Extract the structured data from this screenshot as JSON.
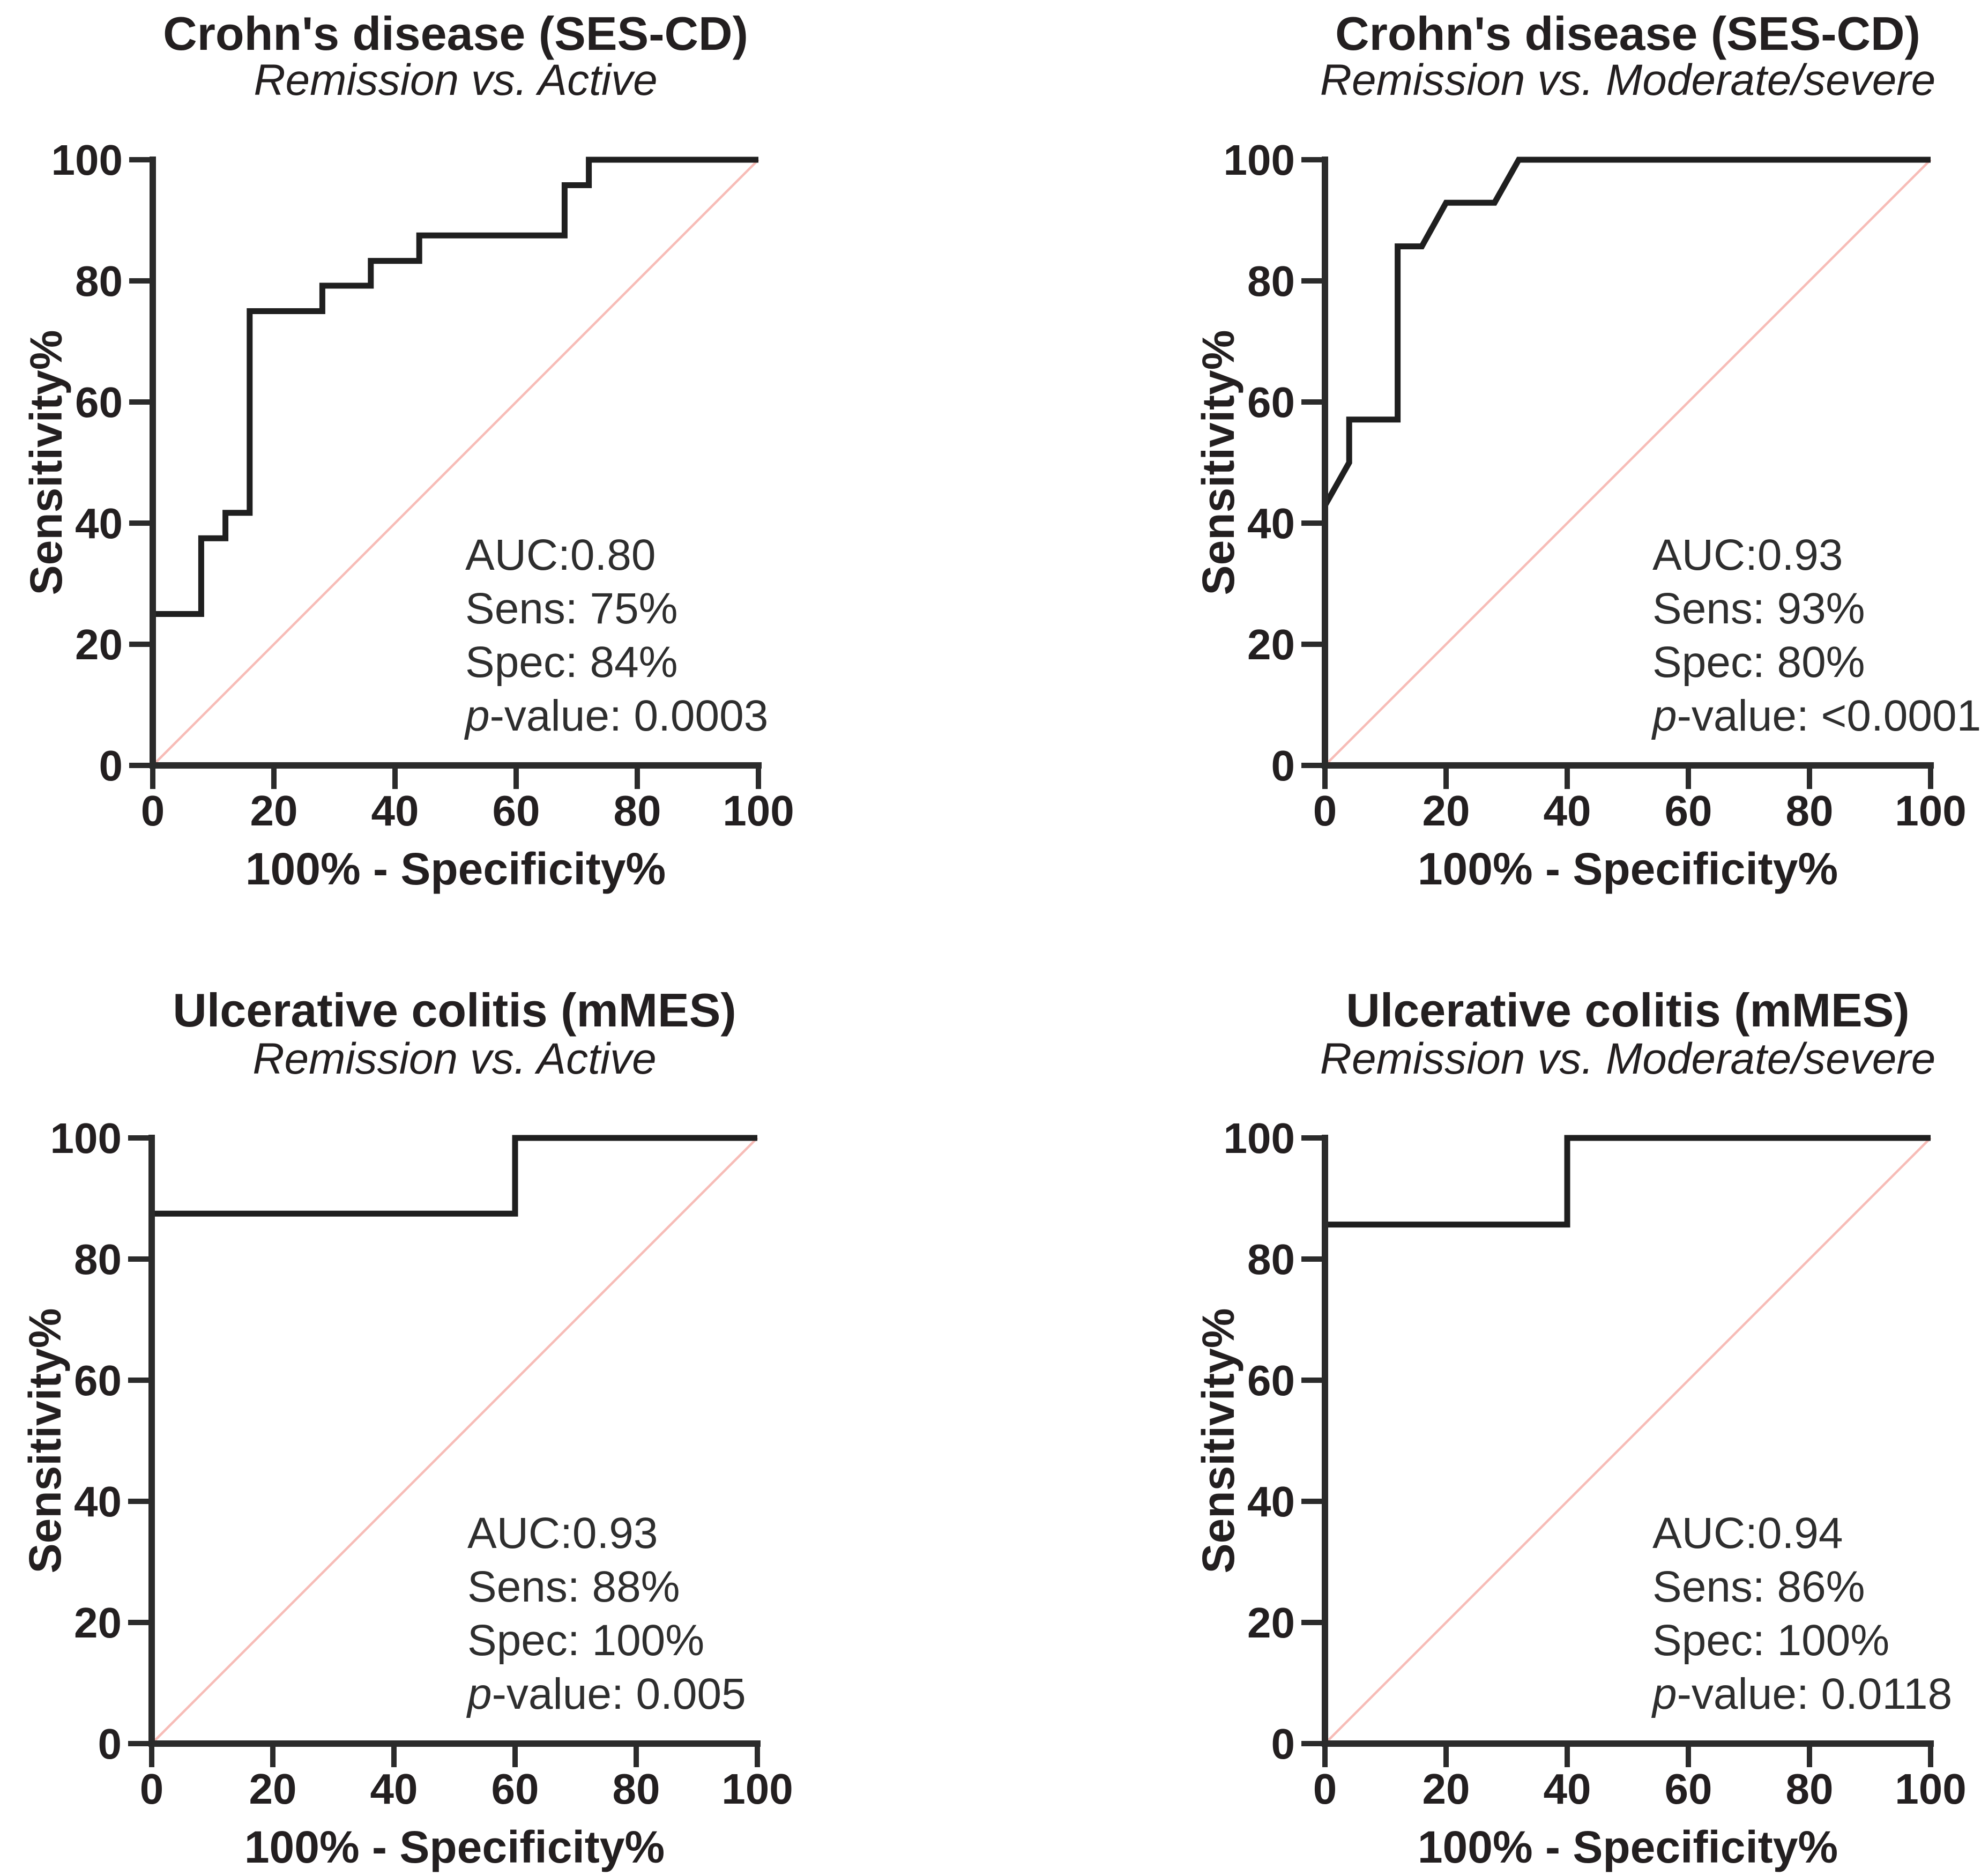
{
  "figure": {
    "background": "#ffffff",
    "text_color": "#231f20",
    "annotation_color": "#2e2e2e",
    "curve_color": "#1f1f1f",
    "axis_color": "#2b2b2b",
    "reference_color": "#f7bcb7"
  },
  "chart_data": [
    {
      "type": "line",
      "title": "Crohn's disease (SES-CD)",
      "subtitle": "Remission vs. Active",
      "xlabel": "100% - Specificity%",
      "ylabel": "Sensitivity%",
      "xlim": [
        0,
        100
      ],
      "ylim": [
        0,
        100
      ],
      "x_ticks": [
        0,
        20,
        40,
        60,
        80,
        100
      ],
      "y_ticks": [
        0,
        20,
        40,
        60,
        80,
        100
      ],
      "grid": false,
      "legend": "none",
      "reference_line": {
        "from": [
          0,
          0
        ],
        "to": [
          100,
          100
        ],
        "meaning": "identity / chance diagonal"
      },
      "roc_points": [
        [
          0,
          0
        ],
        [
          0,
          25
        ],
        [
          8,
          25
        ],
        [
          8,
          37.5
        ],
        [
          12,
          37.5
        ],
        [
          12,
          41.7
        ],
        [
          16,
          41.7
        ],
        [
          16,
          75
        ],
        [
          28,
          75
        ],
        [
          28,
          79.2
        ],
        [
          36,
          79.2
        ],
        [
          36,
          83.3
        ],
        [
          44,
          83.3
        ],
        [
          44,
          87.5
        ],
        [
          68,
          87.5
        ],
        [
          68,
          95.8
        ],
        [
          72,
          95.8
        ],
        [
          72,
          100
        ],
        [
          100,
          100
        ]
      ],
      "annotation": {
        "auc": "AUC:0.80",
        "sens": "Sens: 75%",
        "spec": "Spec: 84%",
        "p_italic": "p",
        "p_rest": "-value: 0.0003"
      }
    },
    {
      "type": "line",
      "title": "Crohn's disease (SES-CD)",
      "subtitle": "Remission vs. Moderate/severe",
      "xlabel": "100% - Specificity%",
      "ylabel": "Sensitivity%",
      "xlim": [
        0,
        100
      ],
      "ylim": [
        0,
        100
      ],
      "x_ticks": [
        0,
        20,
        40,
        60,
        80,
        100
      ],
      "y_ticks": [
        0,
        20,
        40,
        60,
        80,
        100
      ],
      "grid": false,
      "legend": "none",
      "reference_line": {
        "from": [
          0,
          0
        ],
        "to": [
          100,
          100
        ],
        "meaning": "identity / chance diagonal"
      },
      "roc_points": [
        [
          0,
          0
        ],
        [
          0,
          42.9
        ],
        [
          4,
          50
        ],
        [
          4,
          57.1
        ],
        [
          12,
          57.1
        ],
        [
          12,
          85.7
        ],
        [
          16,
          85.7
        ],
        [
          20,
          92.9
        ],
        [
          28,
          92.9
        ],
        [
          32,
          100
        ],
        [
          100,
          100
        ]
      ],
      "annotation": {
        "auc": "AUC:0.93",
        "sens": "Sens: 93%",
        "spec": "Spec: 80%",
        "p_italic": "p",
        "p_rest": "-value: <0.0001"
      }
    },
    {
      "type": "line",
      "title": "Ulcerative colitis (mMES)",
      "subtitle": "Remission vs. Active",
      "xlabel": "100% - Specificity%",
      "ylabel": "Sensitivity%",
      "xlim": [
        0,
        100
      ],
      "ylim": [
        0,
        100
      ],
      "x_ticks": [
        0,
        20,
        40,
        60,
        80,
        100
      ],
      "y_ticks": [
        0,
        20,
        40,
        60,
        80,
        100
      ],
      "grid": false,
      "legend": "none",
      "reference_line": {
        "from": [
          0,
          0
        ],
        "to": [
          100,
          100
        ],
        "meaning": "identity / chance diagonal"
      },
      "roc_points": [
        [
          0,
          0
        ],
        [
          0,
          87.5
        ],
        [
          60,
          87.5
        ],
        [
          60,
          100
        ],
        [
          100,
          100
        ]
      ],
      "annotation": {
        "auc": "AUC:0.93",
        "sens": "Sens: 88%",
        "spec": "Spec: 100%",
        "p_italic": "p",
        "p_rest": "-value: 0.005"
      }
    },
    {
      "type": "line",
      "title": "Ulcerative colitis (mMES)",
      "subtitle": "Remission vs. Moderate/severe",
      "xlabel": "100% - Specificity%",
      "ylabel": "Sensitivity%",
      "xlim": [
        0,
        100
      ],
      "ylim": [
        0,
        100
      ],
      "x_ticks": [
        0,
        20,
        40,
        60,
        80,
        100
      ],
      "y_ticks": [
        0,
        20,
        40,
        60,
        80,
        100
      ],
      "grid": false,
      "legend": "none",
      "reference_line": {
        "from": [
          0,
          0
        ],
        "to": [
          100,
          100
        ],
        "meaning": "identity / chance diagonal"
      },
      "roc_points": [
        [
          0,
          0
        ],
        [
          0,
          85.7
        ],
        [
          40,
          85.7
        ],
        [
          40,
          100
        ],
        [
          100,
          100
        ]
      ],
      "annotation": {
        "auc": "AUC:0.94",
        "sens": "Sens: 86%",
        "spec": "Spec: 100%",
        "p_italic": "p",
        "p_rest": "-value: 0.0118"
      }
    }
  ]
}
